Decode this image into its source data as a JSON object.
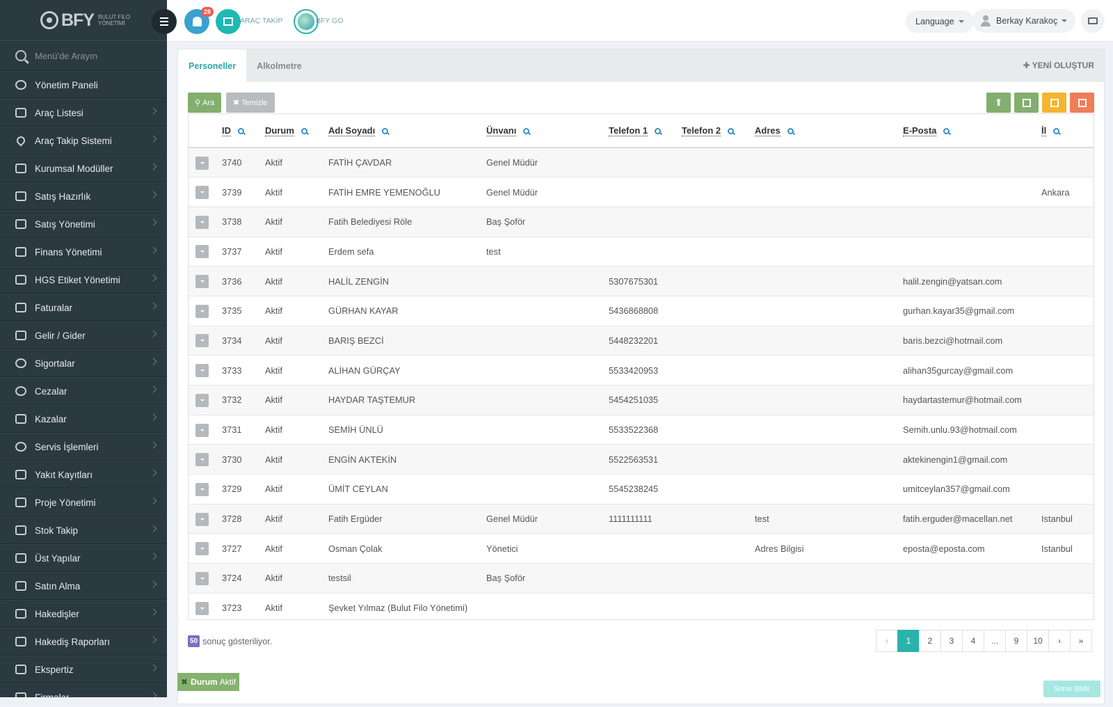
{
  "sidebar": {
    "logo_text": "BFY",
    "logo_sub": "BULUT FİLO YÖNETİMİ",
    "search_placeholder": "Menü'de Arayın",
    "items": [
      {
        "label": "Yönetim Paneli",
        "icon": "dashboard-icon",
        "has_children": false
      },
      {
        "label": "Araç Listesi",
        "icon": "bus-icon",
        "has_children": true
      },
      {
        "label": "Araç Takip Sistemi",
        "icon": "map-pin-icon",
        "has_children": true
      },
      {
        "label": "Kurumsal Modüller",
        "icon": "server-icon",
        "has_children": true
      },
      {
        "label": "Satış Hazırlık",
        "icon": "book-icon",
        "has_children": true
      },
      {
        "label": "Satış Yönetimi",
        "icon": "credit-card-icon",
        "has_children": true
      },
      {
        "label": "Finans Yönetimi",
        "icon": "money-icon",
        "has_children": true
      },
      {
        "label": "HGS Etiket Yönetimi",
        "icon": "tag-icon",
        "has_children": true
      },
      {
        "label": "Faturalar",
        "icon": "file-icon",
        "has_children": true
      },
      {
        "label": "Gelir / Gider",
        "icon": "money-icon",
        "has_children": true
      },
      {
        "label": "Sigortalar",
        "icon": "umbrella-icon",
        "has_children": true
      },
      {
        "label": "Cezalar",
        "icon": "times-circle-icon",
        "has_children": true
      },
      {
        "label": "Kazalar",
        "icon": "car-crash-icon",
        "has_children": true
      },
      {
        "label": "Servis İşlemleri",
        "icon": "check-circle-icon",
        "has_children": true
      },
      {
        "label": "Yakıt Kayıtları",
        "icon": "fuel-icon",
        "has_children": true
      },
      {
        "label": "Proje Yönetimi",
        "icon": "briefcase-icon",
        "has_children": true
      },
      {
        "label": "Stok Takip",
        "icon": "inbox-icon",
        "has_children": true
      },
      {
        "label": "Üst Yapılar",
        "icon": "truck-icon",
        "has_children": true
      },
      {
        "label": "Satın Alma",
        "icon": "credit-card-icon",
        "has_children": true
      },
      {
        "label": "Hakedişler",
        "icon": "truck-icon",
        "has_children": true
      },
      {
        "label": "Hakediş Raporları",
        "icon": "truck-icon",
        "has_children": true
      },
      {
        "label": "Ekspertiz",
        "icon": "list-icon",
        "has_children": true
      },
      {
        "label": "Firmalar",
        "icon": "building-icon",
        "has_children": true
      }
    ]
  },
  "header": {
    "notification_count": "28",
    "arac_takip_label": "ARAÇ TAKİP",
    "bfy_go_label": "BFY GO",
    "language_label": "Language",
    "user_name": "Berkay Karakoç"
  },
  "tabs": [
    {
      "label": "Personeller",
      "active": true
    },
    {
      "label": "Alkolmetre",
      "active": false
    }
  ],
  "new_button_label": "YENİ OLUŞTUR",
  "toolbar": {
    "search_label": "Ara",
    "clear_label": "Temizle",
    "action_colors": [
      "#82af6f",
      "#82af6f",
      "#f5b52f",
      "#f07d58"
    ],
    "action_icons": [
      "upload-icon",
      "excel-icon",
      "print-icon",
      "table-icon"
    ]
  },
  "table": {
    "columns": [
      "ID",
      "Durum",
      "Adı Soyadı",
      "Ünvanı",
      "Telefon 1",
      "Telefon 2",
      "Adres",
      "E-Posta",
      "İl"
    ],
    "rows": [
      {
        "id": "3740",
        "durum": "Aktif",
        "ad": "FATİH ÇAVDAR",
        "unvan": "Genel Müdür",
        "tel1": "",
        "tel2": "",
        "adres": "",
        "eposta": "",
        "il": ""
      },
      {
        "id": "3739",
        "durum": "Aktif",
        "ad": "FATİH EMRE YEMENOĞLU",
        "unvan": "Genel Müdür",
        "tel1": "",
        "tel2": "",
        "adres": "",
        "eposta": "",
        "il": "Ankara"
      },
      {
        "id": "3738",
        "durum": "Aktif",
        "ad": "Fatih Belediyesi Röle",
        "unvan": "Baş Şoför",
        "tel1": "",
        "tel2": "",
        "adres": "",
        "eposta": "",
        "il": ""
      },
      {
        "id": "3737",
        "durum": "Aktif",
        "ad": "Erdem sefa",
        "unvan": "test",
        "tel1": "",
        "tel2": "",
        "adres": "",
        "eposta": "",
        "il": ""
      },
      {
        "id": "3736",
        "durum": "Aktif",
        "ad": "HALİL ZENGİN",
        "unvan": "",
        "tel1": "5307675301",
        "tel2": "",
        "adres": "",
        "eposta": "halil.zengin@yatsan.com",
        "il": ""
      },
      {
        "id": "3735",
        "durum": "Aktif",
        "ad": "GÜRHAN KAYAR",
        "unvan": "",
        "tel1": "5436868808",
        "tel2": "",
        "adres": "",
        "eposta": "gurhan.kayar35@gmail.com",
        "il": ""
      },
      {
        "id": "3734",
        "durum": "Aktif",
        "ad": "BARIŞ BEZCİ",
        "unvan": "",
        "tel1": "5448232201",
        "tel2": "",
        "adres": "",
        "eposta": "baris.bezci@hotmail.com",
        "il": ""
      },
      {
        "id": "3733",
        "durum": "Aktif",
        "ad": "ALİHAN GÜRÇAY",
        "unvan": "",
        "tel1": "5533420953",
        "tel2": "",
        "adres": "",
        "eposta": "alihan35gurcay@gmail.com",
        "il": ""
      },
      {
        "id": "3732",
        "durum": "Aktif",
        "ad": "HAYDAR TAŞTEMUR",
        "unvan": "",
        "tel1": "5454251035",
        "tel2": "",
        "adres": "",
        "eposta": "haydartastemur@hotmail.com",
        "il": ""
      },
      {
        "id": "3731",
        "durum": "Aktif",
        "ad": "SEMİH ÜNLÜ",
        "unvan": "",
        "tel1": "5533522368",
        "tel2": "",
        "adres": "",
        "eposta": "Semih.unlu.93@hotmail.com",
        "il": ""
      },
      {
        "id": "3730",
        "durum": "Aktif",
        "ad": "ENGİN AKTEKİN",
        "unvan": "",
        "tel1": "5522563531",
        "tel2": "",
        "adres": "",
        "eposta": "aktekinengin1@gmail.com",
        "il": ""
      },
      {
        "id": "3729",
        "durum": "Aktif",
        "ad": "ÜMİT CEYLAN",
        "unvan": "",
        "tel1": "5545238245",
        "tel2": "",
        "adres": "",
        "eposta": "umitceylan357@gmail.com",
        "il": ""
      },
      {
        "id": "3728",
        "durum": "Aktif",
        "ad": "Fatih Ergüder",
        "unvan": "Genel Müdür",
        "tel1": "1111111111",
        "tel2": "",
        "adres": "test",
        "eposta": "fatih.erguder@macellan.net",
        "il": "Istanbul"
      },
      {
        "id": "3727",
        "durum": "Aktif",
        "ad": "Osman Çolak",
        "unvan": "Yönetici",
        "tel1": "",
        "tel2": "",
        "adres": "Adres Bilgisi",
        "eposta": "eposta@eposta.com",
        "il": "Istanbul"
      },
      {
        "id": "3724",
        "durum": "Aktif",
        "ad": "testsil",
        "unvan": "Baş Şoför",
        "tel1": "",
        "tel2": "",
        "adres": "",
        "eposta": "",
        "il": ""
      },
      {
        "id": "3723",
        "durum": "Aktif",
        "ad": "Şevket Yılmaz (Bulut Filo Yönetimi)",
        "unvan": "",
        "tel1": "",
        "tel2": "",
        "adres": "",
        "eposta": "",
        "il": ""
      }
    ]
  },
  "footer": {
    "count": "50",
    "count_text": "sonuç gösteriliyor."
  },
  "pagination": [
    "‹",
    "1",
    "2",
    "3",
    "4",
    "...",
    "9",
    "10",
    "›",
    "»"
  ],
  "current_page": "1",
  "filter_chip": {
    "key": "Durum",
    "value": "Aktif"
  },
  "report_button": "Sorun Bildir"
}
